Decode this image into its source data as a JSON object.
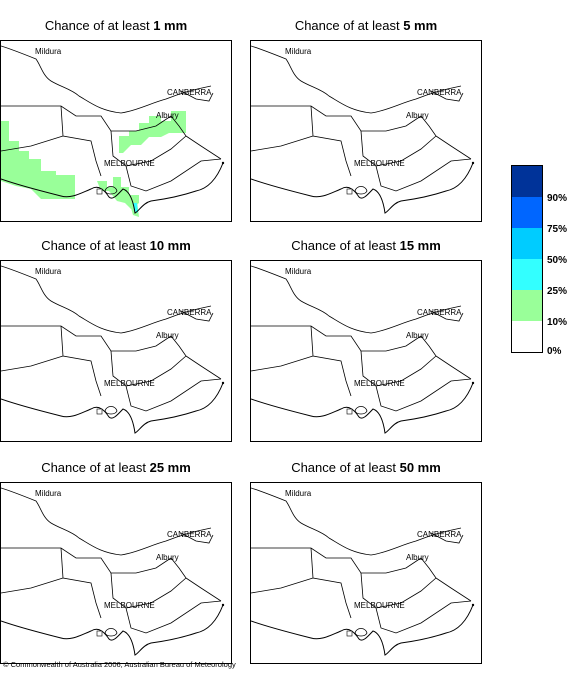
{
  "title_prefix": "Chance of at least ",
  "panels": [
    {
      "amount": "1 mm"
    },
    {
      "amount": "5 mm"
    },
    {
      "amount": "10 mm"
    },
    {
      "amount": "15 mm"
    },
    {
      "amount": "25 mm"
    },
    {
      "amount": "50 mm"
    }
  ],
  "cities": {
    "mildura": "Mildura",
    "canberra": "CANBERRA",
    "albury": "Albury",
    "melbourne": "MELBOURNE"
  },
  "legend": {
    "labels": [
      "90%",
      "75%",
      "50%",
      "25%",
      "10%",
      "0%"
    ],
    "colors": [
      "#003399",
      "#0066ff",
      "#00ccff",
      "#33ffff",
      "#99ff99",
      "#ffffff"
    ]
  },
  "copyright": "© Commonwealth of Australia 2006, Australian Bureau of Meteorology"
}
